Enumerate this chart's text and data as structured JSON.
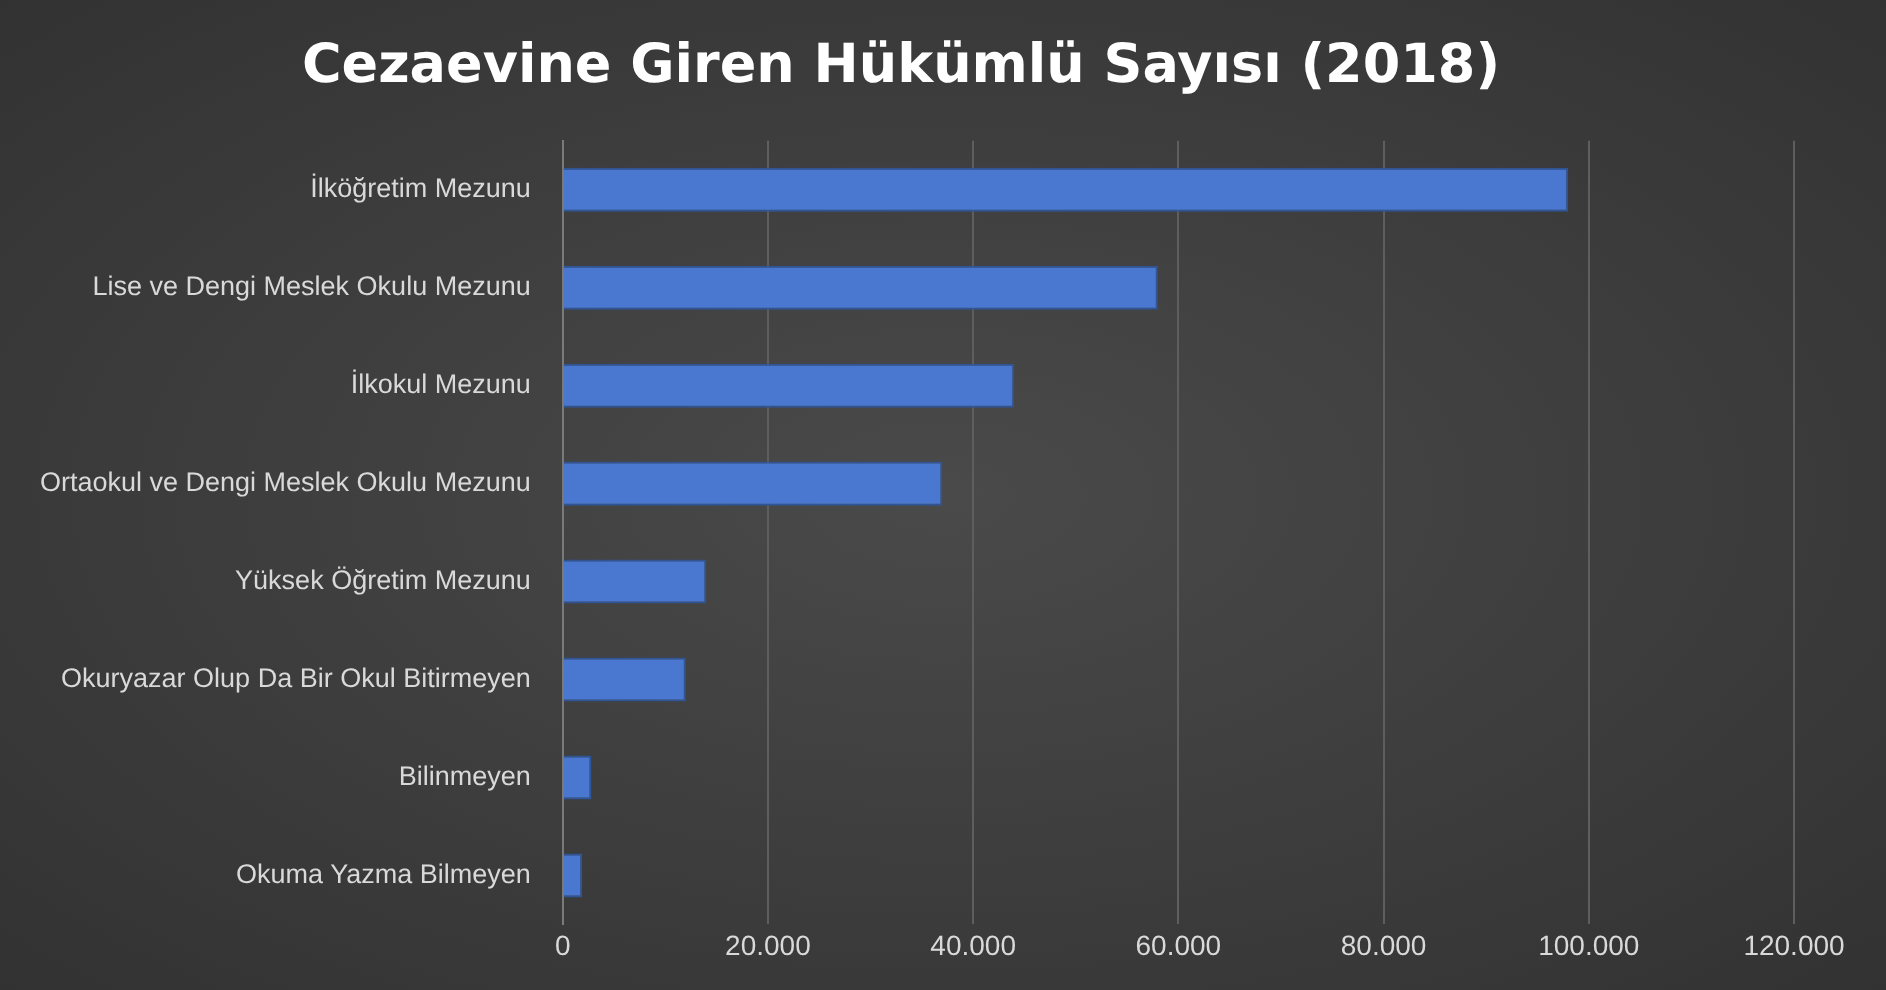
{
  "chart_data": {
    "type": "bar",
    "orientation": "horizontal",
    "title": "Cezaevine Giren Hükümlü Sayısı (2018)",
    "categories": [
      "İlköğretim Mezunu",
      "Lise ve Dengi Meslek Okulu Mezunu",
      "İlkokul Mezunu",
      "Ortaokul ve Dengi Meslek Okulu Mezunu",
      "Yüksek Öğretim Mezunu",
      "Okuryazar Olup Da Bir Okul Bitirmeyen",
      "Bilinmeyen",
      "Okuma Yazma Bilmeyen"
    ],
    "values": [
      98000,
      58000,
      44000,
      37000,
      14000,
      12000,
      2800,
      1900
    ],
    "color": "#4a78d0",
    "xlim": [
      0,
      120000
    ],
    "xticks": [
      0,
      {
        "value": 20000,
        "label": "20.000"
      },
      {
        "value": 40000,
        "label": "40.000"
      },
      {
        "value": 60000,
        "label": "60.000"
      },
      {
        "value": 80000,
        "label": "80.000"
      },
      {
        "value": 100000,
        "label": "100.000"
      },
      {
        "value": 120000,
        "label": "120.000"
      }
    ],
    "grid": "x"
  }
}
